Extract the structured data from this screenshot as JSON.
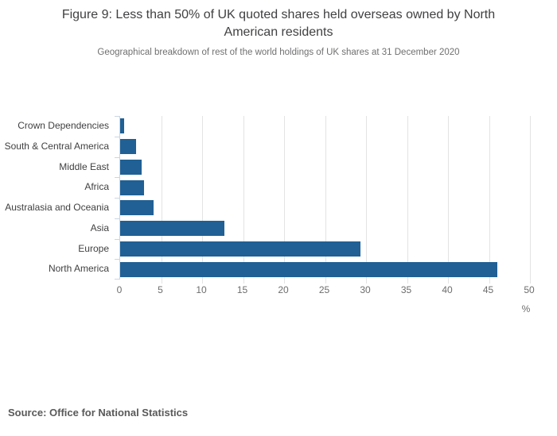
{
  "chart_data": {
    "type": "bar",
    "orientation": "horizontal",
    "title": "Figure 9: Less than 50% of UK quoted shares held overseas owned by North American residents",
    "subtitle": "Geographical breakdown of rest of the world holdings of UK shares at 31 December 2020",
    "categories": [
      "Crown Dependencies",
      "South & Central America",
      "Middle East",
      "Africa",
      "Australasia and Oceania",
      "Asia",
      "Europe",
      "North America"
    ],
    "values": [
      0.5,
      1.9,
      2.6,
      2.9,
      4.1,
      12.7,
      29.3,
      46.0
    ],
    "xlabel": "%",
    "x_ticks": [
      0,
      5,
      10,
      15,
      20,
      25,
      30,
      35,
      40,
      45,
      50
    ],
    "xlim": [
      0,
      50
    ],
    "grid": true,
    "legend": "none",
    "bar_color": "#206095"
  },
  "footer": {
    "source": "Source: Office for National Statistics"
  },
  "colors": {
    "bar": "#206095",
    "axis_line": "#c9d6e4",
    "gridline": "#e3e3e3",
    "title_text": "#414042",
    "subtitle_text": "#707071",
    "category_text": "#414042",
    "tick_text": "#6d6d6d",
    "source_text": "#595959"
  }
}
